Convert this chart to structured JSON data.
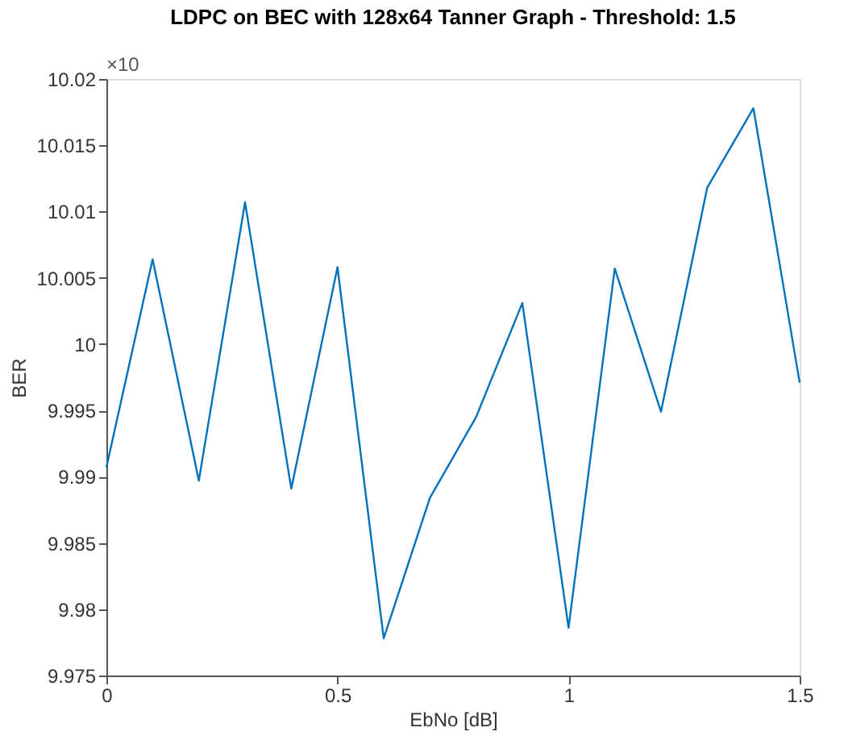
{
  "chart_data": {
    "type": "line",
    "title": "LDPC on BEC with 128x64 Tanner Graph - Threshold: 1.5",
    "xlabel": "EbNo [dB]",
    "ylabel": "BER",
    "annotations": [
      "×10"
    ],
    "x": [
      0,
      0.1,
      0.2,
      0.3,
      0.4,
      0.5,
      0.6,
      0.7,
      0.8,
      0.9,
      1.0,
      1.1,
      1.2,
      1.3,
      1.4,
      1.5
    ],
    "series": [
      {
        "color": "#0072bd",
        "values": [
          9.9907,
          10.0064,
          9.9897,
          10.0107,
          9.9891,
          10.0058,
          9.9778,
          9.9884,
          9.9945,
          10.0031,
          9.9786,
          10.0057,
          9.9949,
          10.0118,
          10.0178,
          9.9971
        ]
      }
    ],
    "xlim": [
      0,
      1.5
    ],
    "xticks": [
      0,
      0.5,
      1,
      1.5
    ],
    "ylim": [
      9.975,
      10.02
    ],
    "yticks": [
      9.975,
      9.98,
      9.985,
      9.99,
      9.995,
      10,
      10.005,
      10.01,
      10.015,
      10.02
    ],
    "grid": false,
    "legend": false,
    "marker": "none",
    "line_style": "solid"
  }
}
